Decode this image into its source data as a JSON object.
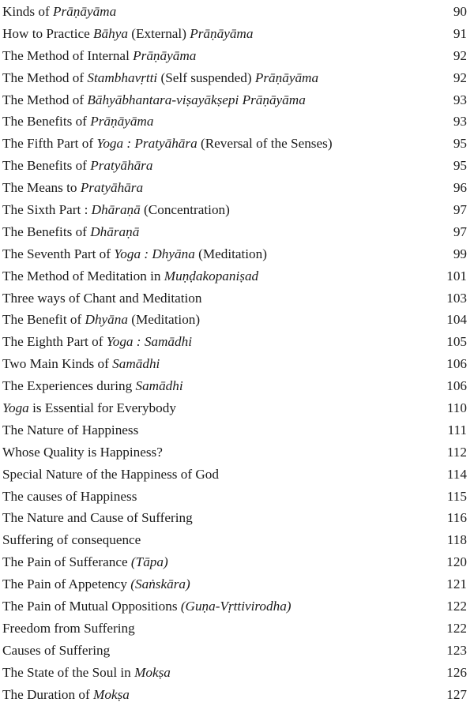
{
  "toc": [
    {
      "title": [
        {
          "t": "Kinds of "
        },
        {
          "t": "Prāṇāyāma",
          "i": true
        }
      ],
      "page": "90"
    },
    {
      "title": [
        {
          "t": "How to Practice "
        },
        {
          "t": "Bāhya",
          "i": true
        },
        {
          "t": " (External) "
        },
        {
          "t": "Prāṇāyāma",
          "i": true
        }
      ],
      "page": "91"
    },
    {
      "title": [
        {
          "t": "The Method of Internal "
        },
        {
          "t": "Prāṇāyāma",
          "i": true
        }
      ],
      "page": "92"
    },
    {
      "title": [
        {
          "t": "The Method of "
        },
        {
          "t": "Stambhavṛtti",
          "i": true
        },
        {
          "t": " (Self suspended) "
        },
        {
          "t": "Prāṇāyāma",
          "i": true
        }
      ],
      "page": "92"
    },
    {
      "title": [
        {
          "t": "The Method of "
        },
        {
          "t": "Bāhyābhantara-viṣayākṣepi Prāṇāyāma",
          "i": true
        }
      ],
      "page": "93"
    },
    {
      "title": [
        {
          "t": "The Benefits of "
        },
        {
          "t": "Prāṇāyāma",
          "i": true
        }
      ],
      "page": "93"
    },
    {
      "title": [
        {
          "t": "The Fifth Part of "
        },
        {
          "t": "Yoga : Pratyāhāra",
          "i": true
        },
        {
          "t": " (Reversal of the Senses)"
        }
      ],
      "page": "95"
    },
    {
      "title": [
        {
          "t": "The Benefits of "
        },
        {
          "t": "Pratyāhāra",
          "i": true
        }
      ],
      "page": "95"
    },
    {
      "title": [
        {
          "t": "The Means to "
        },
        {
          "t": "Pratyāhāra",
          "i": true
        }
      ],
      "page": "96"
    },
    {
      "title": [
        {
          "t": "The Sixth Part : "
        },
        {
          "t": "Dhāraṇā",
          "i": true
        },
        {
          "t": " (Concentration)"
        }
      ],
      "page": "97"
    },
    {
      "title": [
        {
          "t": "The Benefits of "
        },
        {
          "t": "Dhāraṇā",
          "i": true
        }
      ],
      "page": "97"
    },
    {
      "title": [
        {
          "t": "The Seventh Part of "
        },
        {
          "t": "Yoga : Dhyāna",
          "i": true
        },
        {
          "t": " (Meditation)"
        }
      ],
      "page": "99"
    },
    {
      "title": [
        {
          "t": "The Method of Meditation in "
        },
        {
          "t": "Muṇḍakopaniṣad",
          "i": true
        }
      ],
      "page": "101"
    },
    {
      "title": [
        {
          "t": "Three ways of Chant and Meditation"
        }
      ],
      "page": "103"
    },
    {
      "title": [
        {
          "t": "The Benefit of "
        },
        {
          "t": "Dhyāna",
          "i": true
        },
        {
          "t": " (Meditation)"
        }
      ],
      "page": "104"
    },
    {
      "title": [
        {
          "t": "The Eighth Part of "
        },
        {
          "t": "Yoga : Samādhi",
          "i": true
        }
      ],
      "page": "105"
    },
    {
      "title": [
        {
          "t": "Two Main Kinds of "
        },
        {
          "t": "Samādhi",
          "i": true
        }
      ],
      "page": "106"
    },
    {
      "title": [
        {
          "t": "The Experiences during "
        },
        {
          "t": "Samādhi",
          "i": true
        }
      ],
      "page": "106"
    },
    {
      "title": [
        {
          "t": "Yoga",
          "i": true
        },
        {
          "t": " is Essential for Everybody"
        }
      ],
      "page": "110"
    },
    {
      "title": [
        {
          "t": "The Nature of Happiness"
        }
      ],
      "page": "111"
    },
    {
      "title": [
        {
          "t": "Whose Quality is Happiness?"
        }
      ],
      "page": "112"
    },
    {
      "title": [
        {
          "t": "Special Nature of the Happiness of God"
        }
      ],
      "page": "114"
    },
    {
      "title": [
        {
          "t": "The causes of Happiness"
        }
      ],
      "page": "115"
    },
    {
      "title": [
        {
          "t": "The Nature and Cause of Suffering"
        }
      ],
      "page": "116"
    },
    {
      "title": [
        {
          "t": "Suffering of consequence"
        }
      ],
      "page": "118"
    },
    {
      "title": [
        {
          "t": "The Pain of Sufferance "
        },
        {
          "t": "(Tāpa)",
          "i": true
        }
      ],
      "page": "120"
    },
    {
      "title": [
        {
          "t": "The Pain of Appetency "
        },
        {
          "t": "(Saṅskāra)",
          "i": true
        }
      ],
      "page": "121"
    },
    {
      "title": [
        {
          "t": "The Pain of Mutual Oppositions "
        },
        {
          "t": "(Guṇa-Vṛttivirodha)",
          "i": true
        }
      ],
      "page": "122"
    },
    {
      "title": [
        {
          "t": "Freedom from Suffering"
        }
      ],
      "page": "122"
    },
    {
      "title": [
        {
          "t": "Causes of Suffering"
        }
      ],
      "page": "123"
    },
    {
      "title": [
        {
          "t": "The State of the Soul in "
        },
        {
          "t": "Mokṣa",
          "i": true
        }
      ],
      "page": "126"
    },
    {
      "title": [
        {
          "t": "The Duration of "
        },
        {
          "t": "Mokṣa",
          "i": true
        }
      ],
      "page": "127"
    }
  ]
}
